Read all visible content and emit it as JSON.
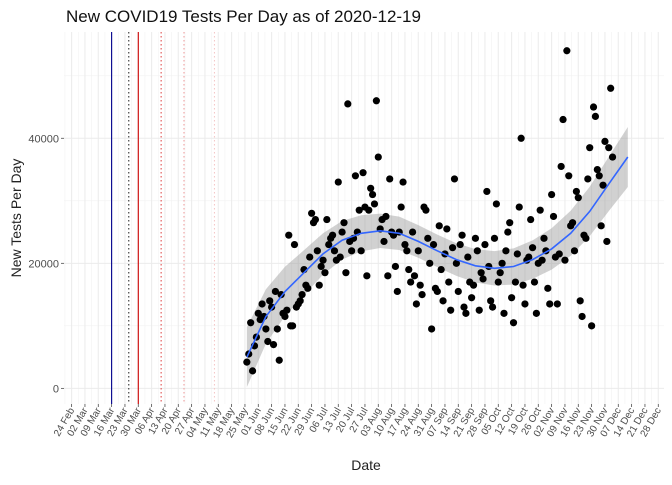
{
  "chart_data": {
    "type": "scatter",
    "title": "New COVID19 Tests Per Day as of 2020-12-19",
    "xlabel": "Date",
    "ylabel": "New Tests Per Day",
    "ylim": [
      -2500,
      57000
    ],
    "xlim": [
      "2020-02-20",
      "2020-12-31"
    ],
    "y_ticks": [
      0,
      20000,
      40000
    ],
    "y_tick_labels": [
      "0",
      "20000",
      "40000"
    ],
    "x_ticks": [
      "2020-02-24",
      "2020-03-02",
      "2020-03-09",
      "2020-03-16",
      "2020-03-23",
      "2020-03-30",
      "2020-04-06",
      "2020-04-13",
      "2020-04-20",
      "2020-04-27",
      "2020-05-04",
      "2020-05-11",
      "2020-05-18",
      "2020-05-25",
      "2020-06-01",
      "2020-06-08",
      "2020-06-15",
      "2020-06-22",
      "2020-06-29",
      "2020-07-06",
      "2020-07-13",
      "2020-07-20",
      "2020-07-27",
      "2020-08-03",
      "2020-08-10",
      "2020-08-17",
      "2020-08-24",
      "2020-08-31",
      "2020-09-07",
      "2020-09-14",
      "2020-09-21",
      "2020-09-28",
      "2020-10-05",
      "2020-10-12",
      "2020-10-19",
      "2020-10-26",
      "2020-11-02",
      "2020-11-09",
      "2020-11-16",
      "2020-11-23",
      "2020-11-30",
      "2020-12-07",
      "2020-12-14",
      "2020-12-21",
      "2020-12-28"
    ],
    "x_tick_labels": [
      "24 Feb",
      "02 Mar",
      "09 Mar",
      "16 Mar",
      "23 Mar",
      "30 Mar",
      "06 Apr",
      "13 Apr",
      "20 Apr",
      "27 Apr",
      "04 May",
      "11 May",
      "18 May",
      "25 May",
      "01 Jun",
      "08 Jun",
      "15 Jun",
      "22 Jun",
      "29 Jun",
      "06 Jul",
      "13 Jul",
      "20 Jul",
      "27 Jul",
      "03 Aug",
      "10 Aug",
      "17 Aug",
      "24 Aug",
      "31 Aug",
      "07 Sep",
      "14 Sep",
      "21 Sep",
      "28 Sep",
      "05 Oct",
      "12 Oct",
      "19 Oct",
      "26 Oct",
      "02 Nov",
      "09 Nov",
      "16 Nov",
      "23 Nov",
      "30 Nov",
      "07 Dec",
      "14 Dec",
      "21 Dec",
      "28 Dec"
    ],
    "grid": true,
    "legend": "none",
    "reference_lines": [
      {
        "x": "2020-03-16",
        "color": "#00008b",
        "style": "solid"
      },
      {
        "x": "2020-03-25",
        "color": "#333333",
        "style": "dotted"
      },
      {
        "x": "2020-03-30",
        "color": "#cc0000",
        "style": "solid"
      },
      {
        "x": "2020-04-11",
        "color": "#e05050",
        "style": "dotted"
      },
      {
        "x": "2020-04-23",
        "color": "#f0a0a0",
        "style": "dotted"
      },
      {
        "x": "2020-05-09",
        "color": "#f4c8c8",
        "style": "dotted"
      }
    ],
    "points": [
      {
        "x": "2020-05-26",
        "y": 4200
      },
      {
        "x": "2020-05-27",
        "y": 5500
      },
      {
        "x": "2020-05-28",
        "y": 10500
      },
      {
        "x": "2020-05-29",
        "y": 2800
      },
      {
        "x": "2020-05-30",
        "y": 6800
      },
      {
        "x": "2020-05-31",
        "y": 8200
      },
      {
        "x": "2020-06-01",
        "y": 12000
      },
      {
        "x": "2020-06-02",
        "y": 11000
      },
      {
        "x": "2020-06-03",
        "y": 13500
      },
      {
        "x": "2020-06-04",
        "y": 11500
      },
      {
        "x": "2020-06-05",
        "y": 9500
      },
      {
        "x": "2020-06-06",
        "y": 7500
      },
      {
        "x": "2020-06-07",
        "y": 14000
      },
      {
        "x": "2020-06-08",
        "y": 13000
      },
      {
        "x": "2020-06-09",
        "y": 7000
      },
      {
        "x": "2020-06-10",
        "y": 15500
      },
      {
        "x": "2020-06-11",
        "y": 9500
      },
      {
        "x": "2020-06-12",
        "y": 4500
      },
      {
        "x": "2020-06-13",
        "y": 15000
      },
      {
        "x": "2020-06-14",
        "y": 12000
      },
      {
        "x": "2020-06-15",
        "y": 11500
      },
      {
        "x": "2020-06-16",
        "y": 12500
      },
      {
        "x": "2020-06-17",
        "y": 24500
      },
      {
        "x": "2020-06-18",
        "y": 10000
      },
      {
        "x": "2020-06-19",
        "y": 10000
      },
      {
        "x": "2020-06-20",
        "y": 23000
      },
      {
        "x": "2020-06-21",
        "y": 13000
      },
      {
        "x": "2020-06-22",
        "y": 13500
      },
      {
        "x": "2020-06-23",
        "y": 14000
      },
      {
        "x": "2020-06-24",
        "y": 15000
      },
      {
        "x": "2020-06-25",
        "y": 19000
      },
      {
        "x": "2020-06-26",
        "y": 16500
      },
      {
        "x": "2020-06-27",
        "y": 16000
      },
      {
        "x": "2020-06-28",
        "y": 21000
      },
      {
        "x": "2020-06-29",
        "y": 28000
      },
      {
        "x": "2020-06-30",
        "y": 26500
      },
      {
        "x": "2020-07-01",
        "y": 27000
      },
      {
        "x": "2020-07-02",
        "y": 22000
      },
      {
        "x": "2020-07-03",
        "y": 16500
      },
      {
        "x": "2020-07-04",
        "y": 19500
      },
      {
        "x": "2020-07-05",
        "y": 20500
      },
      {
        "x": "2020-07-06",
        "y": 18500
      },
      {
        "x": "2020-07-07",
        "y": 27000
      },
      {
        "x": "2020-07-08",
        "y": 23000
      },
      {
        "x": "2020-07-09",
        "y": 24000
      },
      {
        "x": "2020-07-10",
        "y": 24500
      },
      {
        "x": "2020-07-11",
        "y": 22000
      },
      {
        "x": "2020-07-12",
        "y": 20500
      },
      {
        "x": "2020-07-13",
        "y": 33000
      },
      {
        "x": "2020-07-14",
        "y": 21000
      },
      {
        "x": "2020-07-15",
        "y": 25000
      },
      {
        "x": "2020-07-16",
        "y": 26500
      },
      {
        "x": "2020-07-17",
        "y": 18500
      },
      {
        "x": "2020-07-18",
        "y": 45500
      },
      {
        "x": "2020-07-19",
        "y": 23500
      },
      {
        "x": "2020-07-20",
        "y": 22000
      },
      {
        "x": "2020-07-21",
        "y": 24000
      },
      {
        "x": "2020-07-22",
        "y": 34000
      },
      {
        "x": "2020-07-23",
        "y": 25000
      },
      {
        "x": "2020-07-24",
        "y": 28500
      },
      {
        "x": "2020-07-25",
        "y": 22000
      },
      {
        "x": "2020-07-26",
        "y": 34500
      },
      {
        "x": "2020-07-27",
        "y": 29000
      },
      {
        "x": "2020-07-28",
        "y": 18000
      },
      {
        "x": "2020-07-29",
        "y": 28500
      },
      {
        "x": "2020-07-30",
        "y": 32000
      },
      {
        "x": "2020-07-31",
        "y": 31000
      },
      {
        "x": "2020-08-01",
        "y": 29500
      },
      {
        "x": "2020-08-02",
        "y": 46000
      },
      {
        "x": "2020-08-03",
        "y": 37000
      },
      {
        "x": "2020-08-04",
        "y": 25500
      },
      {
        "x": "2020-08-05",
        "y": 27000
      },
      {
        "x": "2020-08-06",
        "y": 23500
      },
      {
        "x": "2020-08-07",
        "y": 27500
      },
      {
        "x": "2020-08-08",
        "y": 18000
      },
      {
        "x": "2020-08-09",
        "y": 33500
      },
      {
        "x": "2020-08-10",
        "y": 25000
      },
      {
        "x": "2020-08-11",
        "y": 24500
      },
      {
        "x": "2020-08-12",
        "y": 19500
      },
      {
        "x": "2020-08-13",
        "y": 15500
      },
      {
        "x": "2020-08-14",
        "y": 25000
      },
      {
        "x": "2020-08-15",
        "y": 29000
      },
      {
        "x": "2020-08-16",
        "y": 33000
      },
      {
        "x": "2020-08-17",
        "y": 23000
      },
      {
        "x": "2020-08-18",
        "y": 22000
      },
      {
        "x": "2020-08-19",
        "y": 19000
      },
      {
        "x": "2020-08-20",
        "y": 17000
      },
      {
        "x": "2020-08-21",
        "y": 25000
      },
      {
        "x": "2020-08-22",
        "y": 18000
      },
      {
        "x": "2020-08-23",
        "y": 13500
      },
      {
        "x": "2020-08-24",
        "y": 22000
      },
      {
        "x": "2020-08-25",
        "y": 16500
      },
      {
        "x": "2020-08-26",
        "y": 15000
      },
      {
        "x": "2020-08-27",
        "y": 29000
      },
      {
        "x": "2020-08-28",
        "y": 28500
      },
      {
        "x": "2020-08-29",
        "y": 24000
      },
      {
        "x": "2020-08-30",
        "y": 20000
      },
      {
        "x": "2020-08-31",
        "y": 9500
      },
      {
        "x": "2020-09-01",
        "y": 23000
      },
      {
        "x": "2020-09-02",
        "y": 16000
      },
      {
        "x": "2020-09-03",
        "y": 15500
      },
      {
        "x": "2020-09-04",
        "y": 26000
      },
      {
        "x": "2020-09-05",
        "y": 19000
      },
      {
        "x": "2020-09-06",
        "y": 14000
      },
      {
        "x": "2020-09-07",
        "y": 21500
      },
      {
        "x": "2020-09-08",
        "y": 25500
      },
      {
        "x": "2020-09-09",
        "y": 17000
      },
      {
        "x": "2020-09-10",
        "y": 12500
      },
      {
        "x": "2020-09-11",
        "y": 22500
      },
      {
        "x": "2020-09-12",
        "y": 33500
      },
      {
        "x": "2020-09-13",
        "y": 20000
      },
      {
        "x": "2020-09-14",
        "y": 15500
      },
      {
        "x": "2020-09-15",
        "y": 23000
      },
      {
        "x": "2020-09-16",
        "y": 24500
      },
      {
        "x": "2020-09-17",
        "y": 13000
      },
      {
        "x": "2020-09-18",
        "y": 12000
      },
      {
        "x": "2020-09-19",
        "y": 21000
      },
      {
        "x": "2020-09-20",
        "y": 17000
      },
      {
        "x": "2020-09-21",
        "y": 14500
      },
      {
        "x": "2020-09-22",
        "y": 16500
      },
      {
        "x": "2020-09-23",
        "y": 24000
      },
      {
        "x": "2020-09-24",
        "y": 22000
      },
      {
        "x": "2020-09-25",
        "y": 12500
      },
      {
        "x": "2020-09-26",
        "y": 18500
      },
      {
        "x": "2020-09-27",
        "y": 17500
      },
      {
        "x": "2020-09-28",
        "y": 23000
      },
      {
        "x": "2020-09-29",
        "y": 31500
      },
      {
        "x": "2020-09-30",
        "y": 19500
      },
      {
        "x": "2020-10-01",
        "y": 14000
      },
      {
        "x": "2020-10-02",
        "y": 13000
      },
      {
        "x": "2020-10-03",
        "y": 24000
      },
      {
        "x": "2020-10-04",
        "y": 29500
      },
      {
        "x": "2020-10-05",
        "y": 17000
      },
      {
        "x": "2020-10-06",
        "y": 18500
      },
      {
        "x": "2020-10-07",
        "y": 20000
      },
      {
        "x": "2020-10-08",
        "y": 12000
      },
      {
        "x": "2020-10-09",
        "y": 22000
      },
      {
        "x": "2020-10-10",
        "y": 25000
      },
      {
        "x": "2020-10-11",
        "y": 26500
      },
      {
        "x": "2020-10-12",
        "y": 14500
      },
      {
        "x": "2020-10-13",
        "y": 10500
      },
      {
        "x": "2020-10-14",
        "y": 17000
      },
      {
        "x": "2020-10-15",
        "y": 21500
      },
      {
        "x": "2020-10-16",
        "y": 29000
      },
      {
        "x": "2020-10-17",
        "y": 40000
      },
      {
        "x": "2020-10-18",
        "y": 16500
      },
      {
        "x": "2020-10-19",
        "y": 13500
      },
      {
        "x": "2020-10-20",
        "y": 20500
      },
      {
        "x": "2020-10-21",
        "y": 21000
      },
      {
        "x": "2020-10-22",
        "y": 27000
      },
      {
        "x": "2020-10-23",
        "y": 22500
      },
      {
        "x": "2020-10-24",
        "y": 17000
      },
      {
        "x": "2020-10-25",
        "y": 12000
      },
      {
        "x": "2020-10-26",
        "y": 20000
      },
      {
        "x": "2020-10-27",
        "y": 28500
      },
      {
        "x": "2020-10-28",
        "y": 20500
      },
      {
        "x": "2020-10-29",
        "y": 24000
      },
      {
        "x": "2020-10-30",
        "y": 22000
      },
      {
        "x": "2020-10-31",
        "y": 16000
      },
      {
        "x": "2020-11-01",
        "y": 13500
      },
      {
        "x": "2020-11-02",
        "y": 31000
      },
      {
        "x": "2020-11-03",
        "y": 27500
      },
      {
        "x": "2020-11-04",
        "y": 21000
      },
      {
        "x": "2020-11-05",
        "y": 13500
      },
      {
        "x": "2020-11-06",
        "y": 21500
      },
      {
        "x": "2020-11-07",
        "y": 35500
      },
      {
        "x": "2020-11-08",
        "y": 43000
      },
      {
        "x": "2020-11-09",
        "y": 20500
      },
      {
        "x": "2020-11-10",
        "y": 54000
      },
      {
        "x": "2020-11-11",
        "y": 34000
      },
      {
        "x": "2020-11-12",
        "y": 26000
      },
      {
        "x": "2020-11-13",
        "y": 26500
      },
      {
        "x": "2020-11-14",
        "y": 22000
      },
      {
        "x": "2020-11-15",
        "y": 31500
      },
      {
        "x": "2020-11-16",
        "y": 30500
      },
      {
        "x": "2020-11-17",
        "y": 14000
      },
      {
        "x": "2020-11-18",
        "y": 11500
      },
      {
        "x": "2020-11-19",
        "y": 24500
      },
      {
        "x": "2020-11-20",
        "y": 24000
      },
      {
        "x": "2020-11-21",
        "y": 33500
      },
      {
        "x": "2020-11-22",
        "y": 38500
      },
      {
        "x": "2020-11-23",
        "y": 10000
      },
      {
        "x": "2020-11-24",
        "y": 45000
      },
      {
        "x": "2020-11-25",
        "y": 43500
      },
      {
        "x": "2020-11-26",
        "y": 35000
      },
      {
        "x": "2020-11-27",
        "y": 34000
      },
      {
        "x": "2020-11-28",
        "y": 26000
      },
      {
        "x": "2020-11-29",
        "y": 32500
      },
      {
        "x": "2020-11-30",
        "y": 39500
      },
      {
        "x": "2020-12-01",
        "y": 23500
      },
      {
        "x": "2020-12-02",
        "y": 38500
      },
      {
        "x": "2020-12-03",
        "y": 48000
      },
      {
        "x": "2020-12-04",
        "y": 37000
      }
    ],
    "trend": [
      {
        "x": "2020-05-26",
        "y": 5000
      },
      {
        "x": "2020-06-05",
        "y": 11500
      },
      {
        "x": "2020-06-15",
        "y": 15500
      },
      {
        "x": "2020-06-25",
        "y": 18500
      },
      {
        "x": "2020-07-05",
        "y": 21500
      },
      {
        "x": "2020-07-15",
        "y": 23700
      },
      {
        "x": "2020-07-25",
        "y": 24800
      },
      {
        "x": "2020-08-04",
        "y": 25200
      },
      {
        "x": "2020-08-14",
        "y": 24800
      },
      {
        "x": "2020-08-24",
        "y": 23500
      },
      {
        "x": "2020-09-03",
        "y": 22000
      },
      {
        "x": "2020-09-13",
        "y": 20600
      },
      {
        "x": "2020-09-23",
        "y": 19600
      },
      {
        "x": "2020-10-03",
        "y": 19200
      },
      {
        "x": "2020-10-13",
        "y": 19500
      },
      {
        "x": "2020-10-23",
        "y": 20600
      },
      {
        "x": "2020-11-02",
        "y": 22300
      },
      {
        "x": "2020-11-12",
        "y": 24800
      },
      {
        "x": "2020-11-22",
        "y": 28300
      },
      {
        "x": "2020-12-02",
        "y": 32700
      },
      {
        "x": "2020-12-12",
        "y": 37000
      }
    ]
  }
}
